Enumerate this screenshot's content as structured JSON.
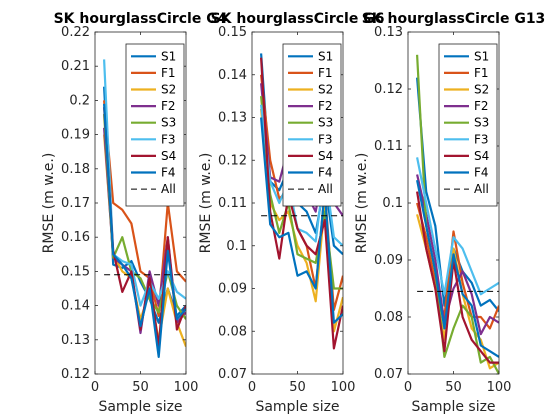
{
  "chart_data": [
    {
      "type": "line",
      "title": "SK hourglassCircle G4",
      "xlabel": "Sample size",
      "ylabel": "RMSE (m w.e.)",
      "xlim": [
        0,
        100
      ],
      "ylim": [
        0.12,
        0.22
      ],
      "xticks": [
        0,
        50,
        100
      ],
      "yticks": [
        0.12,
        0.13,
        0.14,
        0.15,
        0.16,
        0.17,
        0.18,
        0.19,
        0.2,
        0.21,
        0.22
      ],
      "ytick_labels": [
        "0.12",
        "0.13",
        "0.14",
        "0.15",
        "0.16",
        "0.17",
        "0.18",
        "0.19",
        "0.2",
        "0.21",
        "0.22"
      ],
      "grid": false,
      "legend_position": "top-right",
      "x": [
        10,
        20,
        30,
        40,
        50,
        60,
        70,
        80,
        90,
        100
      ],
      "series": [
        {
          "name": "S1",
          "values": [
            0.204,
            0.152,
            0.151,
            0.153,
            0.147,
            0.142,
            0.135,
            0.145,
            0.137,
            0.14
          ]
        },
        {
          "name": "F1",
          "values": [
            0.2,
            0.17,
            0.168,
            0.164,
            0.15,
            0.148,
            0.137,
            0.17,
            0.15,
            0.147
          ]
        },
        {
          "name": "S2",
          "values": [
            0.19,
            0.155,
            0.15,
            0.148,
            0.136,
            0.144,
            0.13,
            0.145,
            0.135,
            0.128
          ]
        },
        {
          "name": "F2",
          "values": [
            0.192,
            0.154,
            0.152,
            0.15,
            0.132,
            0.15,
            0.14,
            0.16,
            0.135,
            0.138
          ]
        },
        {
          "name": "S3",
          "values": [
            0.196,
            0.154,
            0.16,
            0.15,
            0.148,
            0.142,
            0.138,
            0.15,
            0.14,
            0.136
          ]
        },
        {
          "name": "F3",
          "values": [
            0.212,
            0.155,
            0.153,
            0.152,
            0.14,
            0.147,
            0.142,
            0.15,
            0.144,
            0.142
          ]
        },
        {
          "name": "S4",
          "values": [
            0.198,
            0.156,
            0.144,
            0.15,
            0.133,
            0.148,
            0.128,
            0.16,
            0.133,
            0.14
          ]
        },
        {
          "name": "F4",
          "values": [
            0.199,
            0.155,
            0.152,
            0.148,
            0.134,
            0.145,
            0.125,
            0.156,
            0.136,
            0.139
          ]
        },
        {
          "name": "All",
          "dashed": true,
          "values": [
            0.149,
            0.149,
            0.149,
            0.149,
            0.149,
            0.149,
            0.149,
            0.149,
            0.149,
            0.149
          ]
        }
      ]
    },
    {
      "type": "line",
      "title": "SK hourglassCircle G6",
      "xlabel": "Sample size",
      "ylabel": "RMSE (m w.e.)",
      "xlim": [
        0,
        100
      ],
      "ylim": [
        0.07,
        0.15
      ],
      "xticks": [
        0,
        50,
        100
      ],
      "yticks": [
        0.07,
        0.08,
        0.09,
        0.1,
        0.11,
        0.12,
        0.13,
        0.14,
        0.15
      ],
      "ytick_labels": [
        "0.07",
        "0.08",
        "0.09",
        "0.1",
        "0.11",
        "0.12",
        "0.13",
        "0.14",
        "0.15"
      ],
      "grid": false,
      "legend_position": "top-right",
      "x": [
        10,
        20,
        30,
        40,
        50,
        60,
        70,
        80,
        90,
        100
      ],
      "series": [
        {
          "name": "S1",
          "values": [
            0.145,
            0.115,
            0.113,
            0.118,
            0.11,
            0.108,
            0.103,
            0.115,
            0.1,
            0.098
          ]
        },
        {
          "name": "F1",
          "values": [
            0.14,
            0.12,
            0.111,
            0.113,
            0.104,
            0.1,
            0.09,
            0.113,
            0.085,
            0.093
          ]
        },
        {
          "name": "S2",
          "values": [
            0.132,
            0.11,
            0.106,
            0.108,
            0.1,
            0.096,
            0.087,
            0.11,
            0.08,
            0.088
          ]
        },
        {
          "name": "F2",
          "values": [
            0.138,
            0.116,
            0.115,
            0.123,
            0.114,
            0.112,
            0.108,
            0.12,
            0.11,
            0.107
          ]
        },
        {
          "name": "S3",
          "values": [
            0.135,
            0.112,
            0.103,
            0.11,
            0.098,
            0.097,
            0.096,
            0.108,
            0.09,
            0.09
          ]
        },
        {
          "name": "F3",
          "values": [
            0.133,
            0.115,
            0.11,
            0.115,
            0.104,
            0.103,
            0.101,
            0.118,
            0.102,
            0.1
          ]
        },
        {
          "name": "S4",
          "values": [
            0.144,
            0.108,
            0.097,
            0.112,
            0.104,
            0.1,
            0.098,
            0.106,
            0.076,
            0.086
          ]
        },
        {
          "name": "F4",
          "values": [
            0.13,
            0.105,
            0.102,
            0.103,
            0.093,
            0.094,
            0.09,
            0.113,
            0.082,
            0.084
          ]
        },
        {
          "name": "All",
          "dashed": true,
          "values": [
            0.107,
            0.107,
            0.107,
            0.107,
            0.107,
            0.107,
            0.107,
            0.107,
            0.107,
            0.107
          ]
        }
      ]
    },
    {
      "type": "line",
      "title": "SK hourglassCircle G13",
      "xlabel": "Sample size",
      "ylabel": "RMSE (m w.e.)",
      "xlim": [
        0,
        100
      ],
      "ylim": [
        0.07,
        0.13
      ],
      "xticks": [
        0,
        50,
        100
      ],
      "yticks": [
        0.07,
        0.08,
        0.09,
        0.1,
        0.11,
        0.12,
        0.13
      ],
      "ytick_labels": [
        "0.07",
        "0.08",
        "0.09",
        "0.1",
        "0.11",
        "0.12",
        "0.13"
      ],
      "grid": false,
      "legend_position": "top-right",
      "x": [
        10,
        20,
        30,
        40,
        50,
        60,
        70,
        80,
        90,
        100
      ],
      "series": [
        {
          "name": "S1",
          "values": [
            0.122,
            0.102,
            0.096,
            0.082,
            0.092,
            0.088,
            0.086,
            0.082,
            0.083,
            0.081
          ]
        },
        {
          "name": "F1",
          "values": [
            0.1,
            0.094,
            0.086,
            0.08,
            0.095,
            0.086,
            0.08,
            0.08,
            0.078,
            0.082
          ]
        },
        {
          "name": "S2",
          "values": [
            0.098,
            0.092,
            0.085,
            0.076,
            0.092,
            0.084,
            0.078,
            0.076,
            0.071,
            0.072
          ]
        },
        {
          "name": "F2",
          "values": [
            0.105,
            0.098,
            0.09,
            0.079,
            0.085,
            0.088,
            0.084,
            0.077,
            0.08,
            0.079
          ]
        },
        {
          "name": "S3",
          "values": [
            0.126,
            0.096,
            0.088,
            0.073,
            0.078,
            0.082,
            0.08,
            0.072,
            0.073,
            0.07
          ]
        },
        {
          "name": "F3",
          "values": [
            0.108,
            0.1,
            0.092,
            0.084,
            0.094,
            0.092,
            0.088,
            0.084,
            0.085,
            0.086
          ]
        },
        {
          "name": "S4",
          "values": [
            0.102,
            0.092,
            0.085,
            0.074,
            0.09,
            0.08,
            0.076,
            0.074,
            0.072,
            0.072
          ]
        },
        {
          "name": "F4",
          "values": [
            0.104,
            0.096,
            0.088,
            0.078,
            0.091,
            0.084,
            0.082,
            0.075,
            0.074,
            0.073
          ]
        },
        {
          "name": "All",
          "dashed": true,
          "values": [
            0.0845,
            0.0845,
            0.0845,
            0.0845,
            0.0845,
            0.0845,
            0.0845,
            0.0845,
            0.0845,
            0.0845
          ]
        }
      ]
    }
  ],
  "series_colors": {
    "S1": "#0072BD",
    "F1": "#D95319",
    "S2": "#EDB120",
    "F2": "#7E2F8E",
    "S3": "#77AC30",
    "F3": "#4DBEEE",
    "S4": "#A2142F",
    "F4": "#0072BD",
    "All": "#000000"
  }
}
